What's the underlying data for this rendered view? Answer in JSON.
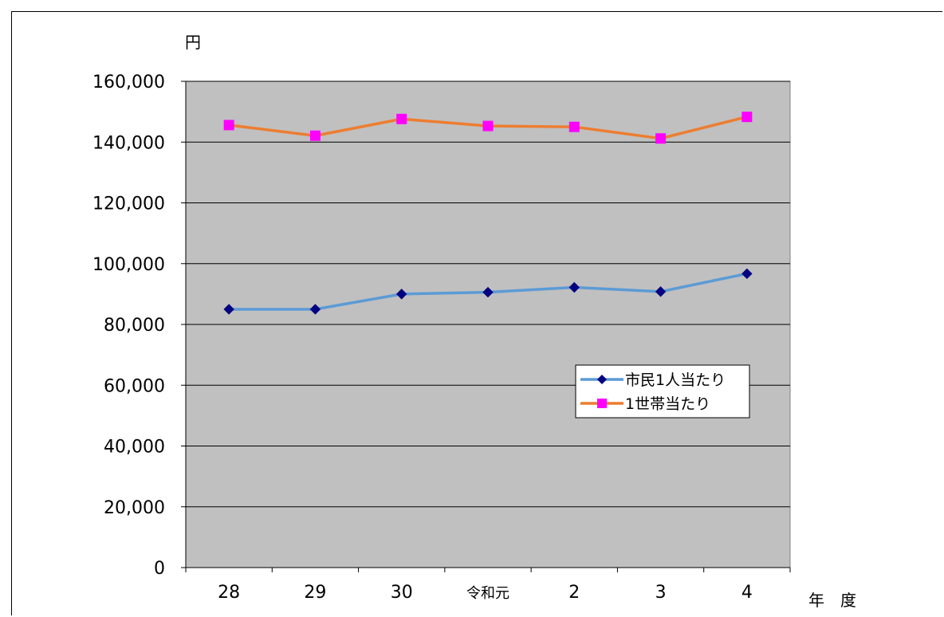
{
  "chart_data": {
    "type": "line",
    "title": "",
    "ylabel": "円",
    "xlabel": "年　度",
    "ylim": [
      0,
      160000
    ],
    "yticks": [
      "0",
      "20,000",
      "40,000",
      "60,000",
      "80,000",
      "100,000",
      "120,000",
      "140,000",
      "160,000"
    ],
    "categories": [
      "28",
      "29",
      "30",
      "令和元",
      "2",
      "3",
      "4"
    ],
    "grid": true,
    "legend_position": "right-middle",
    "plot_background": "#c0c0c0",
    "series": [
      {
        "name": "市民1人当たり",
        "values": [
          85000,
          85000,
          90000,
          90600,
          92200,
          90800,
          96700
        ],
        "line_color": "#5b9bd5",
        "marker": "diamond",
        "marker_color": "#000080"
      },
      {
        "name": "1世帯当たり",
        "values": [
          145600,
          142100,
          147600,
          145300,
          145000,
          141200,
          148300
        ],
        "line_color": "#ed7d31",
        "marker": "square",
        "marker_color": "#ff00ff"
      }
    ]
  }
}
